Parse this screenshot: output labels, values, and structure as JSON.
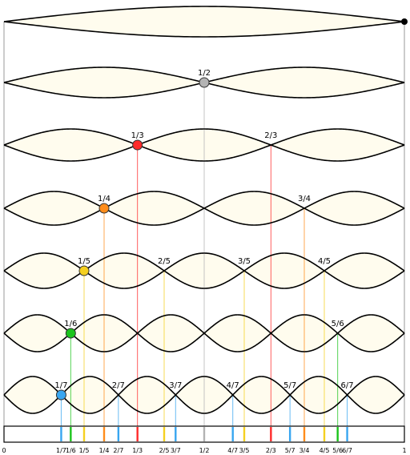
{
  "colors": {
    "background": "#ffffff",
    "loop_fill": "#fffcee",
    "outline": "#000000",
    "frame_line": "#808080",
    "fraction_colors": {
      "1/2": "#b3b3b3",
      "1/3": "#ff2a2a",
      "1/4": "#ff8c1a",
      "1/5": "#f5d020",
      "1/6": "#1bc41b",
      "1/7": "#38a6f0"
    }
  },
  "harmonics": [
    {
      "n": 1,
      "nodes": []
    },
    {
      "n": 2,
      "nodes": [
        {
          "label": "1/2",
          "den": 2,
          "num": 1,
          "marker": true
        }
      ]
    },
    {
      "n": 3,
      "nodes": [
        {
          "label": "1/3",
          "den": 3,
          "num": 1,
          "marker": true
        },
        {
          "label": "2/3",
          "den": 3,
          "num": 2,
          "marker": false
        }
      ]
    },
    {
      "n": 4,
      "nodes": [
        {
          "label": "1/4",
          "den": 4,
          "num": 1,
          "marker": true
        },
        {
          "label": "3/4",
          "den": 4,
          "num": 3,
          "marker": false
        }
      ]
    },
    {
      "n": 5,
      "nodes": [
        {
          "label": "1/5",
          "den": 5,
          "num": 1,
          "marker": true
        },
        {
          "label": "2/5",
          "den": 5,
          "num": 2,
          "marker": false
        },
        {
          "label": "3/5",
          "den": 5,
          "num": 3,
          "marker": false
        },
        {
          "label": "4/5",
          "den": 5,
          "num": 4,
          "marker": false
        }
      ]
    },
    {
      "n": 6,
      "nodes": [
        {
          "label": "1/6",
          "den": 6,
          "num": 1,
          "marker": true
        },
        {
          "label": "5/6",
          "den": 6,
          "num": 5,
          "marker": false
        }
      ]
    },
    {
      "n": 7,
      "nodes": [
        {
          "label": "1/7",
          "den": 7,
          "num": 1,
          "marker": true
        },
        {
          "label": "2/7",
          "den": 7,
          "num": 2,
          "marker": false
        },
        {
          "label": "3/7",
          "den": 7,
          "num": 3,
          "marker": false
        },
        {
          "label": "4/7",
          "den": 7,
          "num": 4,
          "marker": false
        },
        {
          "label": "5/7",
          "den": 7,
          "num": 5,
          "marker": false
        },
        {
          "label": "6/7",
          "den": 7,
          "num": 6,
          "marker": false
        }
      ]
    }
  ],
  "scale": {
    "start_label": "0",
    "end_label": "1",
    "ticks": [
      {
        "label": "1/7",
        "num": 1,
        "den": 7
      },
      {
        "label": "1/6",
        "num": 1,
        "den": 6
      },
      {
        "label": "1/5",
        "num": 1,
        "den": 5
      },
      {
        "label": "1/4",
        "num": 1,
        "den": 4
      },
      {
        "label": "2/7",
        "num": 2,
        "den": 7
      },
      {
        "label": "1/3",
        "num": 1,
        "den": 3
      },
      {
        "label": "2/5",
        "num": 2,
        "den": 5
      },
      {
        "label": "3/7",
        "num": 3,
        "den": 7
      },
      {
        "label": "1/2",
        "num": 1,
        "den": 2
      },
      {
        "label": "4/7",
        "num": 4,
        "den": 7
      },
      {
        "label": "3/5",
        "num": 3,
        "den": 5
      },
      {
        "label": "2/3",
        "num": 2,
        "den": 3
      },
      {
        "label": "5/7",
        "num": 5,
        "den": 7
      },
      {
        "label": "3/4",
        "num": 3,
        "den": 4
      },
      {
        "label": "4/5",
        "num": 4,
        "den": 5
      },
      {
        "label": "5/6",
        "num": 5,
        "den": 6
      },
      {
        "label": "6/7",
        "num": 6,
        "den": 7
      }
    ]
  }
}
